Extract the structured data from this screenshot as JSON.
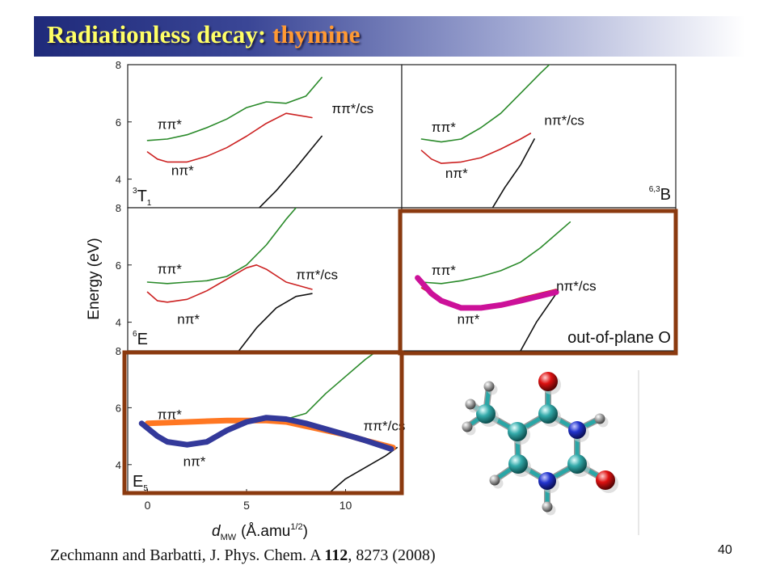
{
  "slide": {
    "title_main": "Radiationless decay:",
    "title_accent": "thymine",
    "citation": {
      "authors": "Zechmann and Barbatti, J. Phys. Chem. A ",
      "volume": "112",
      "rest": ", 8273 (2008)"
    },
    "page_number": "40"
  },
  "colors": {
    "pipi": "#2a8a2a",
    "npi": "#cc2222",
    "ground": "#111111",
    "highlight_box": "#8b3a0f",
    "pathway_magenta": "#cc1199",
    "pathway_orange": "#ff7722",
    "pathway_blue": "#33399a"
  },
  "chart_data": {
    "type": "line",
    "ylabel": "Energy (eV)",
    "xlabel": {
      "symbol": "d",
      "subscript": "MW",
      "unit": "(Å.amu",
      "superscript": "1/2",
      "close": ")"
    },
    "x_ticks": [
      "0",
      "5",
      "10"
    ],
    "xlim": [
      -1,
      13
    ],
    "y_ticks": [
      "4",
      "6",
      "8"
    ],
    "ylim": [
      3.0,
      8.0
    ],
    "panels": [
      {
        "id": "3T1",
        "label_sup": "3",
        "label_main": "T",
        "label_sub": "1",
        "label_pos": "bottom-left",
        "series_labels": [
          {
            "text": "ππ*",
            "x": 0.5,
            "y": 5.75
          },
          {
            "text": "ππ*/cs",
            "x": 9.3,
            "y": 6.3
          },
          {
            "text": "nπ*",
            "x": 1.2,
            "y": 4.15
          }
        ],
        "series": [
          {
            "name": "ππ*",
            "color": "pipi",
            "x": [
              0,
              1,
              2,
              3,
              4,
              5,
              6,
              7,
              8,
              8.8
            ],
            "y": [
              5.35,
              5.4,
              5.55,
              5.8,
              6.1,
              6.5,
              6.7,
              6.65,
              6.9,
              7.55
            ]
          },
          {
            "name": "nπ*",
            "color": "npi",
            "x": [
              0,
              0.5,
              1,
              2,
              3,
              4,
              5,
              6,
              7,
              8.3
            ],
            "y": [
              4.95,
              4.7,
              4.6,
              4.6,
              4.8,
              5.1,
              5.5,
              5.95,
              6.3,
              6.15
            ]
          },
          {
            "name": "ground",
            "color": "ground",
            "x": [
              5.5,
              6.5,
              7.5,
              8.8
            ],
            "y": [
              2.9,
              3.6,
              4.4,
              5.5
            ]
          }
        ]
      },
      {
        "id": "63B",
        "label_sup": "6,3",
        "label_main": "B",
        "label_sub": "",
        "label_pos": "bottom-right",
        "series_labels": [
          {
            "text": "ππ*",
            "x": 0.5,
            "y": 5.65
          },
          {
            "text": "nπ*/cs",
            "x": 6.2,
            "y": 5.9
          },
          {
            "text": "nπ*",
            "x": 1.2,
            "y": 4.05
          }
        ],
        "series": [
          {
            "name": "ππ*",
            "color": "pipi",
            "x": [
              0,
              0.5,
              1,
              2,
              3,
              4,
              5,
              6,
              6.6
            ],
            "y": [
              5.4,
              5.35,
              5.3,
              5.4,
              5.8,
              6.3,
              7.0,
              7.7,
              8.1
            ]
          },
          {
            "name": "nπ*",
            "color": "npi",
            "x": [
              0,
              0.5,
              1,
              2,
              3,
              4,
              5,
              5.5
            ],
            "y": [
              5.0,
              4.7,
              4.55,
              4.6,
              4.75,
              5.05,
              5.4,
              5.6
            ]
          },
          {
            "name": "ground",
            "color": "ground",
            "x": [
              3.5,
              4.2,
              5,
              5.7
            ],
            "y": [
              2.9,
              3.7,
              4.5,
              5.4
            ]
          }
        ]
      },
      {
        "id": "6E",
        "label_sup": "6",
        "label_main": "E",
        "label_sub": "",
        "label_pos": "bottom-left",
        "series_labels": [
          {
            "text": "ππ*",
            "x": 0.5,
            "y": 5.7
          },
          {
            "text": "ππ*/cs",
            "x": 7.5,
            "y": 5.5
          },
          {
            "text": "nπ*",
            "x": 1.5,
            "y": 3.95
          }
        ],
        "series": [
          {
            "name": "ππ*",
            "color": "pipi",
            "x": [
              0,
              1,
              2,
              3,
              4,
              5,
              6,
              7,
              7.5
            ],
            "y": [
              5.4,
              5.35,
              5.4,
              5.45,
              5.6,
              6.0,
              6.7,
              7.6,
              8.0
            ]
          },
          {
            "name": "nπ*",
            "color": "npi",
            "x": [
              0,
              0.5,
              1,
              2,
              3,
              4,
              5,
              5.5,
              6,
              7,
              8.3
            ],
            "y": [
              5.05,
              4.75,
              4.7,
              4.8,
              5.1,
              5.5,
              5.9,
              6.0,
              5.85,
              5.4,
              5.15
            ]
          },
          {
            "name": "ground",
            "color": "ground",
            "x": [
              4.5,
              5.5,
              6.5,
              7.5,
              8.3
            ],
            "y": [
              2.9,
              3.8,
              4.5,
              4.9,
              5.0
            ]
          }
        ]
      },
      {
        "id": "oop",
        "label_sup": "",
        "label_main": "out-of-plane O",
        "label_sub": "",
        "label_pos": "bottom-right",
        "series_labels": [
          {
            "text": "ππ*",
            "x": 0.5,
            "y": 5.65
          },
          {
            "text": "nπ*/cs",
            "x": 6.8,
            "y": 5.1
          },
          {
            "text": "nπ*",
            "x": 1.8,
            "y": 3.95
          }
        ],
        "series": [
          {
            "name": "ππ*",
            "color": "pipi",
            "x": [
              0,
              1,
              2,
              3,
              4,
              5,
              6,
              7.5
            ],
            "y": [
              5.4,
              5.35,
              5.45,
              5.6,
              5.8,
              6.1,
              6.6,
              7.5
            ]
          },
          {
            "name": "nπ*",
            "color": "npi",
            "x": [
              0,
              1,
              2,
              3,
              4,
              5,
              6.8
            ],
            "y": [
              5.2,
              4.75,
              4.5,
              4.5,
              4.65,
              4.85,
              5.15
            ]
          },
          {
            "name": "ground",
            "color": "ground",
            "x": [
              5.0,
              5.8,
              6.8
            ],
            "y": [
              3.0,
              4.0,
              5.0
            ]
          },
          {
            "name": "pathway",
            "color": "pathway_magenta",
            "thick": true,
            "x": [
              -0.2,
              0.5,
              1,
              2,
              3,
              4,
              5,
              6.8
            ],
            "y": [
              5.55,
              5.0,
              4.75,
              4.5,
              4.5,
              4.6,
              4.75,
              5.05
            ]
          }
        ]
      },
      {
        "id": "E5",
        "label_sup": "",
        "label_main": "E",
        "label_sub": "5",
        "label_pos": "bottom-left",
        "series_labels": [
          {
            "text": "ππ*",
            "x": 0.5,
            "y": 5.6
          },
          {
            "text": "ππ*/cs",
            "x": 10.9,
            "y": 5.2
          },
          {
            "text": "nπ*",
            "x": 1.8,
            "y": 3.95
          }
        ],
        "series": [
          {
            "name": "ππ*",
            "color": "pipi",
            "x": [
              6,
              7,
              8,
              9,
              10,
              11,
              12
            ],
            "y": [
              5.5,
              5.6,
              5.8,
              6.5,
              7.1,
              7.7,
              8.2
            ]
          },
          {
            "name": "ground",
            "color": "ground",
            "x": [
              9,
              10,
              11,
              12,
              12.6
            ],
            "y": [
              2.9,
              3.5,
              3.9,
              4.3,
              4.6
            ]
          },
          {
            "name": "pathway-ππ*",
            "color": "pathway_orange",
            "thick": true,
            "x": [
              0,
              2,
              4,
              6,
              7,
              8,
              9,
              10,
              11,
              12.4
            ],
            "y": [
              5.45,
              5.5,
              5.55,
              5.55,
              5.5,
              5.35,
              5.2,
              5.05,
              4.85,
              4.6
            ]
          },
          {
            "name": "pathway-nπ*",
            "color": "pathway_blue",
            "thick": true,
            "x": [
              -0.3,
              0.5,
              1,
              2,
              3,
              4,
              5,
              6,
              7,
              8,
              9,
              10,
              11,
              12.3
            ],
            "y": [
              5.45,
              5.0,
              4.8,
              4.7,
              4.8,
              5.2,
              5.5,
              5.65,
              5.6,
              5.45,
              5.25,
              5.05,
              4.85,
              4.55
            ]
          }
        ]
      }
    ]
  }
}
